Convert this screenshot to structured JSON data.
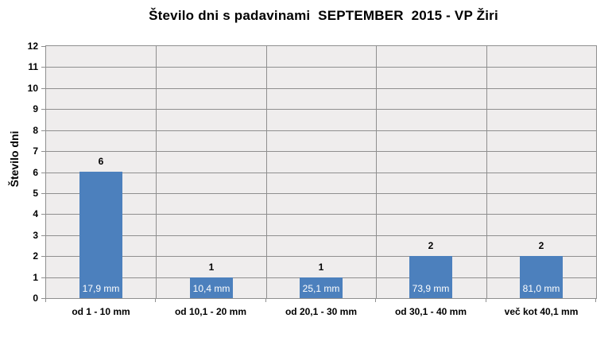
{
  "chart_data": {
    "type": "bar",
    "title": "Število dni s padavinami  SEPTEMBER  2015 - VP Žiri",
    "ylabel": "Število dni",
    "xlabel": "",
    "categories": [
      "od 1 - 10 mm",
      "od 10,1 - 20 mm",
      "od 20,1 - 30 mm",
      "od 30,1 - 40 mm",
      "več kot 40,1 mm"
    ],
    "values": [
      6,
      1,
      1,
      2,
      2
    ],
    "bar_value_labels": [
      "6",
      "1",
      "1",
      "2",
      "2"
    ],
    "bar_inner_labels": [
      "17,9 mm",
      "10,4 mm",
      "25,1 mm",
      "73,9 mm",
      "81,0 mm"
    ],
    "ylim": [
      0,
      12
    ],
    "ytick_step": 1,
    "grid": true,
    "legend_position": "none",
    "colors": {
      "bar": "#4C80BD",
      "plot_background": "#EFEDED",
      "gridline": "#8F8F8F",
      "text": "#000000",
      "bar_inner_text": "#FFFFFF"
    }
  }
}
